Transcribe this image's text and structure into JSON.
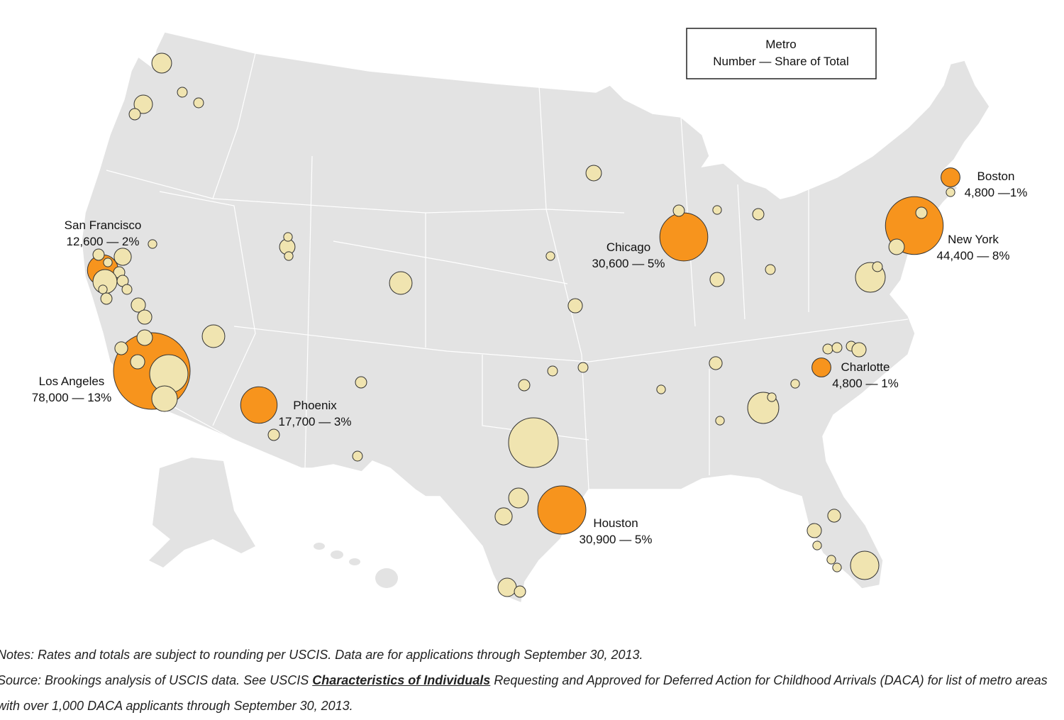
{
  "legend": {
    "title": "Metro",
    "subtitle": "Number — Share of Total"
  },
  "metros": [
    {
      "name": "Los Angeles",
      "value": 78000,
      "label": "78,000 — 13%"
    },
    {
      "name": "New York",
      "value": 44400,
      "label": "44,400 — 8%"
    },
    {
      "name": "Houston",
      "value": 30900,
      "label": "30,900 — 5%"
    },
    {
      "name": "Chicago",
      "value": 30600,
      "label": "30,600 — 5%"
    },
    {
      "name": "Phoenix",
      "value": 17700,
      "label": "17,700 — 3%"
    },
    {
      "name": "San Francisco",
      "value": 12600,
      "label": "12,600 — 2%"
    },
    {
      "name": "Boston",
      "value": 4800,
      "label": "4,800 —1%"
    },
    {
      "name": "Charlotte",
      "value": 4800,
      "label": "4,800 — 1%"
    }
  ],
  "other_metros": [
    5200,
    4500,
    1700,
    1300,
    1300,
    1700,
    3900,
    1000,
    1700,
    7700,
    1700,
    1000,
    1300,
    1700,
    2700,
    2700,
    1000,
    19500,
    8700,
    3200,
    2200,
    2700,
    6800,
    3200,
    1000,
    1000,
    6800,
    1700,
    1700,
    1300,
    32800,
    5200,
    3900,
    4500,
    1700,
    1700,
    1300,
    1300,
    1000,
    2700,
    3200,
    1700,
    1000,
    1700,
    2700,
    1300,
    2200,
    1000,
    12900,
    1000,
    1000,
    1300,
    1300,
    1300,
    2700,
    1000,
    11800,
    1300,
    3200,
    1700,
    1000,
    2200,
    2700,
    1000,
    1000,
    1000,
    10700
  ],
  "notes": {
    "notes": "Notes: Rates and totals are subject to rounding per USCIS. Data are for applications through September 30, 2013.",
    "source_before": "Source: Brookings analysis of USCIS data. See USCIS",
    "source_link": "Characteristics of Individuals",
    "source_after": "Requesting and Approved for Deferred Action for Childhood Arrivals (DACA) for list of metro areas with over 1,000 DACA applicants through September 30, 2013."
  }
}
